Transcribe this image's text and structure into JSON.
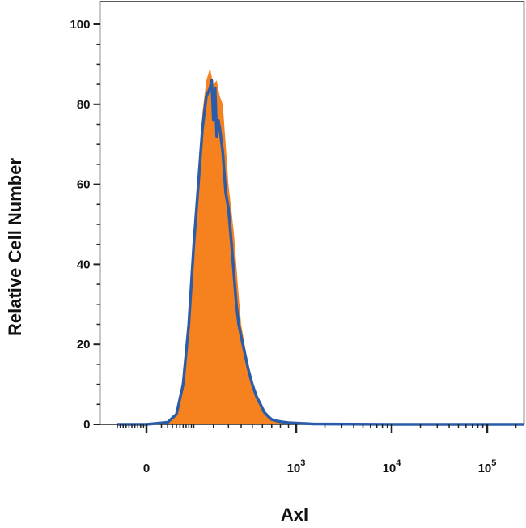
{
  "chart_data": {
    "type": "area",
    "title": "",
    "xlabel": "Axl",
    "ylabel": "Relative Cell Number",
    "x_scale": "biexponential (flow cytometry)",
    "ylim": [
      0,
      100
    ],
    "y_ticks": [
      0,
      20,
      40,
      60,
      80,
      100
    ],
    "x_ticks": [
      {
        "base": "0",
        "exp": ""
      },
      {
        "base": "10",
        "exp": "3"
      },
      {
        "base": "10",
        "exp": "4"
      },
      {
        "base": "10",
        "exp": "5"
      }
    ],
    "grid": false,
    "legend": "none",
    "series": [
      {
        "style": "filled",
        "color": "#f5821f",
        "x": [
          -100,
          0,
          20,
          40,
          60,
          80,
          100,
          120,
          140,
          160,
          180,
          200,
          220,
          240,
          260,
          280,
          300,
          320,
          340,
          360,
          380,
          400,
          430,
          460,
          500,
          540,
          580,
          620,
          660,
          700,
          760,
          820,
          900,
          1000,
          1500,
          10000,
          300000
        ],
        "y": [
          0,
          0,
          0.5,
          3,
          12,
          28,
          46,
          62,
          78,
          86,
          89,
          85,
          86,
          82,
          80,
          70,
          60,
          54,
          48,
          40,
          32,
          25,
          20,
          15,
          11,
          8,
          5,
          3,
          2,
          1.2,
          0.8,
          0.5,
          0.4,
          0.3,
          0.1,
          0,
          0
        ]
      },
      {
        "style": "line",
        "color": "#2a5caa",
        "x": [
          -100,
          0,
          20,
          40,
          60,
          80,
          100,
          120,
          140,
          160,
          180,
          190,
          200,
          210,
          220,
          230,
          240,
          260,
          280,
          300,
          320,
          340,
          360,
          380,
          400,
          430,
          460,
          500,
          540,
          580,
          620,
          660,
          700,
          760,
          820,
          900,
          1000,
          1500,
          10000,
          300000
        ],
        "y": [
          0,
          0,
          0.5,
          2.5,
          10,
          25,
          45,
          60,
          74,
          82,
          84,
          86,
          76,
          84,
          72,
          76,
          74,
          68,
          58,
          54,
          46,
          38,
          30,
          25,
          22,
          18,
          14,
          10,
          7,
          5,
          3,
          2,
          1.2,
          0.8,
          0.6,
          0.4,
          0.3,
          0.1,
          0,
          0
        ]
      }
    ]
  }
}
